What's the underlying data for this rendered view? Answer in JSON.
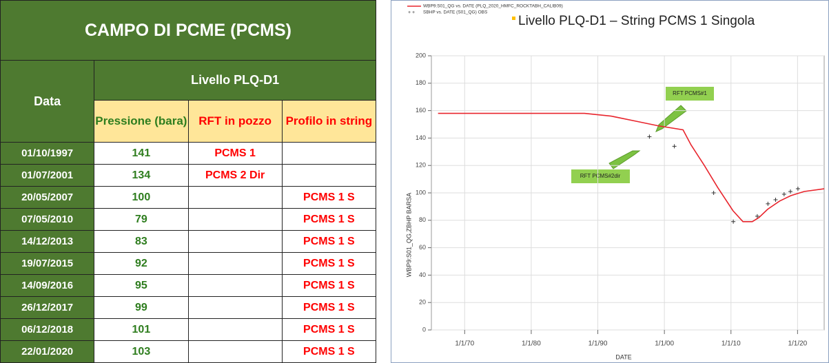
{
  "table": {
    "title": "CAMPO DI  PCME (PCMS)",
    "date_header": "Data",
    "level_header": "Livello PLQ-D1",
    "columns": [
      "Pressione (bara)",
      "RFT in pozzo",
      "Profilo in string"
    ],
    "rows": [
      [
        "01/10/1997",
        141,
        "PCMS 1",
        null
      ],
      [
        "01/07/2001",
        134,
        "PCMS 2 Dir",
        null
      ],
      [
        "20/05/2007",
        100,
        null,
        "PCMS 1 S"
      ],
      [
        "07/05/2010",
        79,
        null,
        "PCMS 1 S"
      ],
      [
        "14/12/2013",
        83,
        null,
        "PCMS 1 S"
      ],
      [
        "19/07/2015",
        92,
        null,
        "PCMS 1 S"
      ],
      [
        "14/09/2016",
        95,
        null,
        "PCMS 1 S"
      ],
      [
        "26/12/2017",
        99,
        null,
        "PCMS 1 S"
      ],
      [
        "06/12/2018",
        101,
        null,
        "PCMS 1 S"
      ],
      [
        "22/01/2020",
        103,
        null,
        "PCMS 1 S"
      ]
    ]
  },
  "chart_data": {
    "type": "line",
    "title": "Livello PLQ-D1 – String PCMS 1 Singola",
    "x_label": "DATE",
    "y_label": "WBP9:S01_QG,ZBHP  BARSA",
    "annotations": [
      "RFT PCMS#1",
      "RFT PCMS#2dir"
    ],
    "xlim": [
      1965,
      2024
    ],
    "ylim": [
      0,
      200
    ],
    "xticks": [
      {
        "value": 1970,
        "label": "1/1/70"
      },
      {
        "value": 1980,
        "label": "1/1/80"
      },
      {
        "value": 1990,
        "label": "1/1/90"
      },
      {
        "value": 2000,
        "label": "1/1/00"
      },
      {
        "value": 2010,
        "label": "1/1/10"
      },
      {
        "value": 2020,
        "label": "1/1/20"
      }
    ],
    "yticks": [
      0,
      20,
      40,
      60,
      80,
      100,
      120,
      140,
      160,
      180,
      200
    ],
    "grid": true,
    "series": [
      {
        "name": "WBP9:S01_QG vs. DATE (PLQ_2020_HMFC_ROCKTABH_CALIB09)",
        "color": "#e8242c",
        "style": "line",
        "x": [
          1966,
          1975,
          1985,
          1988,
          1992,
          1996,
          1999,
          2002.8,
          2004,
          2006,
          2008,
          2010.3,
          2011.8,
          2013.2,
          2014.2,
          2015.5,
          2017.3,
          2019,
          2021,
          2024
        ],
        "values": [
          158,
          158,
          158,
          158,
          156,
          152,
          149,
          146,
          135,
          120,
          104,
          87,
          79,
          79,
          82,
          88,
          94,
          98,
          101,
          103
        ]
      },
      {
        "name": "SBHP vs. DATE (S01_QG) OBS",
        "color": "#333333",
        "style": "markers",
        "x": [
          1997.75,
          2001.5,
          2007.4,
          2010.35,
          2013.95,
          2015.55,
          2016.7,
          2017.98,
          2018.93,
          2020.06
        ],
        "values": [
          141,
          134,
          100,
          79,
          83,
          92,
          95,
          99,
          101,
          103
        ]
      }
    ]
  }
}
